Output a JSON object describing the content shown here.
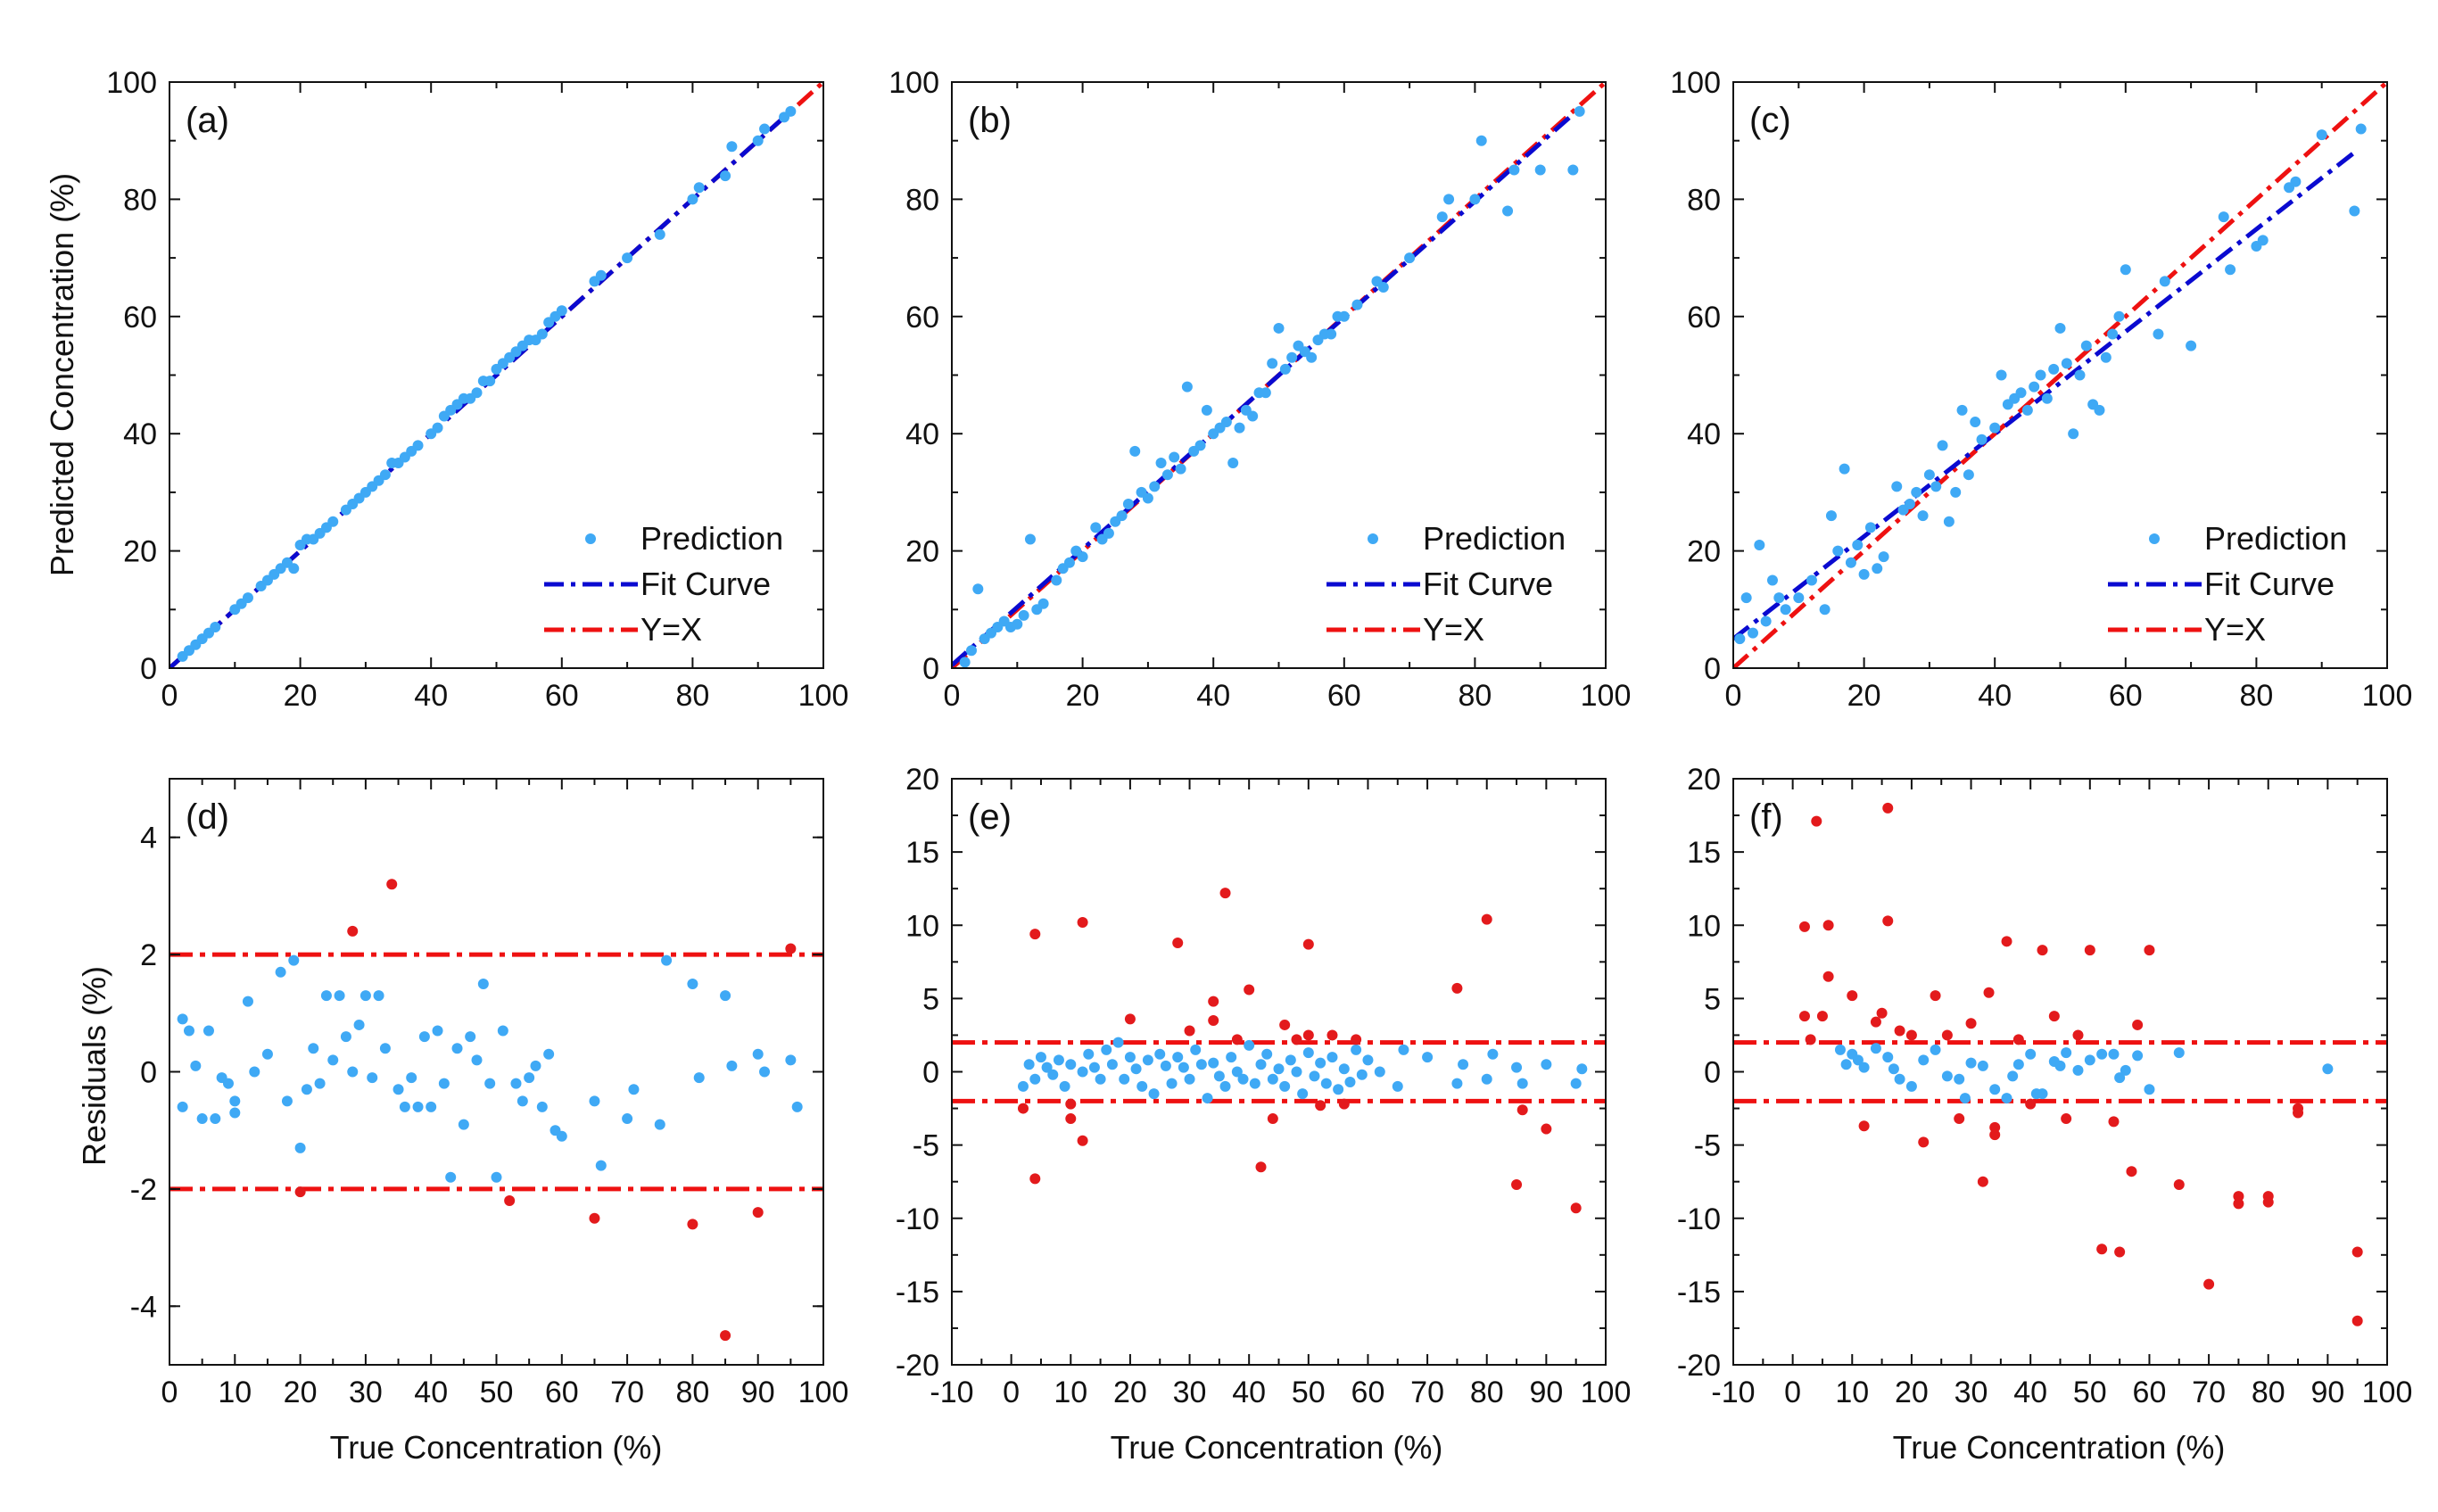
{
  "figure": {
    "xlabel": "True Concentration (%)",
    "ylabel_top": "Predicted Concentration (%)",
    "ylabel_bottom": "Residuals (%)"
  },
  "colors": {
    "prediction": "#3fa9f5",
    "fit": "#0a0ad0",
    "identity": "#ee1111",
    "outlier": "#e31a1c",
    "axis": "#111111"
  },
  "chart_data": [
    {
      "panel": "(a)",
      "type": "scatter",
      "xlim": [
        0,
        100
      ],
      "ylim": [
        0,
        100
      ],
      "xticks": [
        "0",
        "20",
        "40",
        "60",
        "80",
        "100"
      ],
      "yticks": [
        "0",
        "20",
        "40",
        "60",
        "80",
        "100"
      ],
      "legend": [
        "Prediction",
        "Fit Curve",
        "Y=X"
      ],
      "fit": {
        "x": [
          0,
          95
        ],
        "y": [
          0,
          95
        ]
      },
      "identity": {
        "x": [
          0,
          100
        ],
        "y": [
          0,
          100
        ]
      },
      "points": {
        "x": [
          2,
          3,
          4,
          5,
          6,
          7,
          10,
          11,
          12,
          14,
          15,
          16,
          17,
          18,
          19,
          20,
          21,
          22,
          23,
          24,
          25,
          27,
          28,
          29,
          30,
          31,
          32,
          33,
          34,
          35,
          36,
          37,
          38,
          40,
          41,
          42,
          43,
          44,
          45,
          46,
          47,
          48,
          49,
          50,
          51,
          52,
          53,
          54,
          55,
          56,
          57,
          58,
          59,
          60,
          65,
          66,
          70,
          75,
          80,
          81,
          85,
          86,
          90,
          91,
          94,
          95
        ],
        "y": [
          2,
          3,
          4,
          5,
          6,
          7,
          10,
          11,
          12,
          14,
          15,
          16,
          17,
          18,
          17,
          21,
          22,
          22,
          23,
          24,
          25,
          27,
          28,
          29,
          30,
          31,
          32,
          33,
          35,
          35,
          36,
          37,
          38,
          40,
          41,
          43,
          44,
          45,
          46,
          46,
          47,
          49,
          49,
          51,
          52,
          53,
          54,
          55,
          56,
          56,
          57,
          59,
          60,
          61,
          66,
          67,
          70,
          74,
          80,
          82,
          84,
          89,
          90,
          92,
          94,
          95
        ]
      }
    },
    {
      "panel": "(b)",
      "type": "scatter",
      "xlim": [
        0,
        100
      ],
      "ylim": [
        0,
        100
      ],
      "xticks": [
        "0",
        "20",
        "40",
        "60",
        "80",
        "100"
      ],
      "yticks": [
        "0",
        "20",
        "40",
        "60",
        "80",
        "100"
      ],
      "legend": [
        "Prediction",
        "Fit Curve",
        "Y=X"
      ],
      "fit": {
        "x": [
          0,
          95
        ],
        "y": [
          0.5,
          94.5
        ]
      },
      "identity": {
        "x": [
          0,
          100
        ],
        "y": [
          0,
          100
        ]
      },
      "points": {
        "x": [
          2,
          3,
          4,
          5,
          6,
          7,
          8,
          9,
          10,
          11,
          12,
          13,
          14,
          16,
          17,
          18,
          19,
          20,
          22,
          23,
          24,
          25,
          26,
          27,
          28,
          29,
          30,
          31,
          32,
          33,
          34,
          35,
          36,
          37,
          38,
          39,
          40,
          41,
          42,
          43,
          44,
          45,
          46,
          47,
          48,
          49,
          50,
          51,
          52,
          53,
          54,
          55,
          56,
          57,
          58,
          59,
          60,
          62,
          65,
          66,
          70,
          75,
          76,
          80,
          81,
          85,
          86,
          90,
          95,
          96
        ],
        "y": [
          1,
          3,
          13.5,
          5,
          6,
          7,
          8,
          7,
          7.5,
          9,
          22,
          10,
          11,
          15,
          17,
          18,
          20,
          19,
          24,
          22,
          23,
          25,
          26,
          28,
          37,
          30,
          29,
          31,
          35,
          33,
          36,
          34,
          48,
          37,
          38,
          44,
          40,
          41,
          42,
          35,
          41,
          44,
          43,
          47,
          47,
          52,
          58,
          51,
          53,
          55,
          54,
          53,
          56,
          57,
          57,
          60,
          60,
          62,
          66,
          65,
          70,
          77,
          80,
          80,
          90,
          78,
          85,
          85,
          85,
          95
        ]
      }
    },
    {
      "panel": "(c)",
      "type": "scatter",
      "xlim": [
        0,
        100
      ],
      "ylim": [
        0,
        100
      ],
      "xticks": [
        "0",
        "20",
        "40",
        "60",
        "80",
        "100"
      ],
      "yticks": [
        "0",
        "20",
        "40",
        "60",
        "80",
        "100"
      ],
      "legend": [
        "Prediction",
        "Fit Curve",
        "Y=X"
      ],
      "fit": {
        "x": [
          0,
          95
        ],
        "y": [
          5,
          88
        ]
      },
      "identity": {
        "x": [
          0,
          100
        ],
        "y": [
          0,
          100
        ]
      },
      "points": {
        "x": [
          1,
          2,
          3,
          4,
          5,
          6,
          7,
          8,
          10,
          12,
          14,
          15,
          16,
          17,
          18,
          19,
          20,
          21,
          22,
          23,
          25,
          26,
          27,
          28,
          29,
          30,
          31,
          32,
          33,
          34,
          35,
          36,
          37,
          38,
          40,
          41,
          42,
          43,
          44,
          45,
          46,
          47,
          48,
          49,
          50,
          51,
          52,
          53,
          54,
          55,
          56,
          57,
          58,
          59,
          60,
          65,
          66,
          70,
          75,
          76,
          80,
          81,
          85,
          86,
          90,
          95,
          96
        ],
        "y": [
          5,
          12,
          6,
          21,
          8,
          15,
          12,
          10,
          12,
          15,
          10,
          26,
          20,
          34,
          18,
          21,
          16,
          24,
          17,
          19,
          31,
          27,
          28,
          30,
          26,
          33,
          31,
          38,
          25,
          30,
          44,
          33,
          42,
          39,
          41,
          50,
          45,
          46,
          47,
          44,
          48,
          50,
          46,
          51,
          58,
          52,
          40,
          50,
          55,
          45,
          44,
          53,
          57,
          60,
          68,
          57,
          66,
          55,
          77,
          68,
          72,
          73,
          82,
          83,
          91,
          78,
          92
        ]
      }
    },
    {
      "panel": "(d)",
      "type": "scatter",
      "xlim": [
        0,
        100
      ],
      "ylim": [
        -5,
        5
      ],
      "xticks": [
        "0",
        "10",
        "20",
        "30",
        "40",
        "50",
        "60",
        "70",
        "80",
        "90",
        "100"
      ],
      "yticks": [
        "-4",
        "-2",
        "0",
        "2",
        "4"
      ],
      "threshold": [
        -2,
        2
      ],
      "points": {
        "x": [
          2,
          2,
          3,
          4,
          5,
          6,
          7,
          8,
          9,
          10,
          10,
          12,
          13,
          15,
          17,
          18,
          19,
          20,
          21,
          22,
          23,
          24,
          25,
          26,
          27,
          28,
          29,
          30,
          31,
          32,
          33,
          35,
          36,
          37,
          38,
          39,
          40,
          41,
          42,
          43,
          44,
          45,
          46,
          47,
          48,
          49,
          50,
          51,
          53,
          54,
          55,
          56,
          57,
          58,
          59,
          60,
          65,
          66,
          70,
          71,
          75,
          76,
          80,
          81,
          85,
          86,
          90,
          91,
          95,
          96
        ],
        "y": [
          0.9,
          -0.6,
          0.7,
          0.1,
          -0.8,
          0.7,
          -0.8,
          -0.1,
          -0.2,
          -0.5,
          -0.7,
          1.2,
          0.0,
          0.3,
          1.7,
          -0.5,
          1.9,
          -1.3,
          -0.3,
          0.4,
          -0.2,
          1.3,
          0.2,
          1.3,
          0.6,
          0.0,
          0.8,
          1.3,
          -0.1,
          1.3,
          0.4,
          -0.3,
          -0.6,
          -0.1,
          -0.6,
          0.6,
          -0.6,
          0.7,
          -0.2,
          -1.8,
          0.4,
          -0.9,
          0.6,
          0.2,
          1.5,
          -0.2,
          -1.8,
          0.7,
          -0.2,
          -0.5,
          -0.1,
          0.1,
          -0.6,
          0.3,
          -1.0,
          -1.1,
          -0.5,
          -1.6,
          -0.8,
          -0.3,
          -0.9,
          1.9,
          1.5,
          -0.1,
          1.3,
          0.1,
          0.3,
          0.0,
          0.2,
          -0.6
        ]
      },
      "outliers": {
        "x": [
          20,
          28,
          34,
          52,
          65,
          80,
          85,
          90,
          95
        ],
        "y": [
          -2.05,
          2.4,
          3.2,
          -2.2,
          -2.5,
          -2.6,
          -4.5,
          -2.4,
          2.1
        ]
      }
    },
    {
      "panel": "(e)",
      "type": "scatter",
      "xlim": [
        -10,
        100
      ],
      "ylim": [
        -20,
        20
      ],
      "xticks": [
        "-10",
        "0",
        "10",
        "20",
        "30",
        "40",
        "50",
        "60",
        "70",
        "80",
        "90",
        "100"
      ],
      "yticks": [
        "-20",
        "-15",
        "-10",
        "-5",
        "0",
        "5",
        "10",
        "15",
        "20"
      ],
      "threshold": [
        -2,
        2
      ],
      "points": {
        "x": [
          2,
          3,
          4,
          5,
          6,
          7,
          8,
          9,
          10,
          12,
          13,
          14,
          15,
          16,
          17,
          18,
          19,
          20,
          21,
          22,
          23,
          24,
          25,
          26,
          27,
          28,
          29,
          30,
          31,
          32,
          33,
          34,
          35,
          36,
          37,
          38,
          39,
          40,
          41,
          42,
          43,
          44,
          45,
          46,
          47,
          48,
          49,
          50,
          51,
          52,
          53,
          54,
          55,
          56,
          57,
          58,
          59,
          60,
          62,
          65,
          66,
          70,
          75,
          76,
          80,
          81,
          85,
          86,
          90,
          95,
          96
        ],
        "y": [
          -1,
          0.5,
          -0.5,
          1,
          0.3,
          -0.2,
          0.8,
          -1,
          0.5,
          0,
          1.2,
          0.3,
          -0.5,
          1.5,
          0.5,
          2,
          -0.5,
          1,
          0.2,
          -1,
          0.8,
          -1.5,
          1.2,
          0.4,
          -0.8,
          1,
          0.3,
          -0.5,
          1.5,
          0.5,
          -1.8,
          0.6,
          -0.3,
          -1,
          1,
          0,
          -0.5,
          1.8,
          -0.8,
          0.5,
          1.2,
          -0.5,
          0.2,
          -1,
          0.8,
          0,
          -1.5,
          1.3,
          -0.3,
          0.6,
          -0.8,
          1,
          -1.2,
          0.2,
          -0.7,
          1.5,
          -0.2,
          0.8,
          0,
          -1,
          1.5,
          1,
          -0.8,
          0.5,
          -0.5,
          1.2,
          0.3,
          -0.8,
          0.5,
          -0.8,
          0.2
        ]
      },
      "outliers": {
        "x": [
          2,
          4,
          4,
          10,
          10,
          12,
          12,
          20,
          28,
          30,
          34,
          34,
          36,
          38,
          40,
          42,
          44,
          46,
          48,
          50,
          50,
          52,
          54,
          56,
          58,
          75,
          80,
          85,
          86,
          90,
          95
        ],
        "y": [
          -2.5,
          9.4,
          -7.3,
          -2.2,
          -3.2,
          10.2,
          -4.7,
          3.6,
          8.8,
          2.8,
          4.8,
          3.5,
          12.2,
          2.2,
          5.6,
          -6.5,
          -3.2,
          3.2,
          2.2,
          8.7,
          2.5,
          -2.3,
          2.5,
          -2.2,
          2.2,
          5.7,
          10.4,
          -7.7,
          -2.6,
          -3.9,
          -9.3
        ]
      }
    },
    {
      "panel": "(f)",
      "type": "scatter",
      "xlim": [
        -10,
        100
      ],
      "ylim": [
        -20,
        20
      ],
      "xticks": [
        "-10",
        "0",
        "10",
        "20",
        "30",
        "40",
        "50",
        "60",
        "70",
        "80",
        "90",
        "100"
      ],
      "yticks": [
        "-20",
        "-15",
        "-10",
        "-5",
        "0",
        "5",
        "10",
        "15",
        "20"
      ],
      "threshold": [
        -2,
        2
      ],
      "points": {
        "x": [
          8,
          9,
          10,
          11,
          12,
          14,
          16,
          17,
          18,
          20,
          22,
          24,
          26,
          28,
          29,
          30,
          32,
          34,
          36,
          37,
          38,
          40,
          41,
          42,
          44,
          45,
          46,
          48,
          50,
          52,
          54,
          55,
          56,
          58,
          60,
          65,
          90
        ],
        "y": [
          1.5,
          0.5,
          1.2,
          0.8,
          0.3,
          1.6,
          1.0,
          0.2,
          -0.5,
          -1.0,
          0.8,
          1.5,
          -0.3,
          -0.5,
          -1.8,
          0.6,
          0.4,
          -1.2,
          -1.8,
          -0.3,
          0.5,
          1.2,
          -1.5,
          -1.5,
          0.7,
          0.4,
          1.3,
          0.1,
          0.8,
          1.2,
          1.2,
          -0.4,
          0.1,
          1.1,
          -1.2,
          1.3,
          0.2
        ]
      },
      "outliers": {
        "x": [
          2,
          2,
          3,
          4,
          5,
          6,
          6,
          10,
          12,
          14,
          15,
          16,
          16,
          18,
          20,
          22,
          24,
          26,
          28,
          30,
          32,
          33,
          34,
          34,
          36,
          38,
          40,
          42,
          44,
          46,
          48,
          50,
          52,
          54,
          55,
          57,
          58,
          60,
          65,
          70,
          75,
          75,
          80,
          80,
          85,
          85,
          95,
          95
        ],
        "y": [
          9.9,
          3.8,
          2.2,
          17.1,
          3.8,
          10.0,
          6.5,
          5.2,
          -3.7,
          3.4,
          4.0,
          18.0,
          10.3,
          2.8,
          2.5,
          -4.8,
          5.2,
          2.5,
          -3.2,
          3.3,
          -7.5,
          5.4,
          -3.8,
          -4.3,
          8.9,
          2.2,
          -2.2,
          8.3,
          3.8,
          -3.2,
          2.5,
          8.3,
          -12.1,
          -3.4,
          -12.3,
          -6.8,
          3.2,
          8.3,
          -7.7,
          -14.5,
          -8.5,
          -9.0,
          -8.5,
          -8.9,
          -2.5,
          -2.8,
          -12.3,
          -17.0
        ]
      }
    }
  ]
}
